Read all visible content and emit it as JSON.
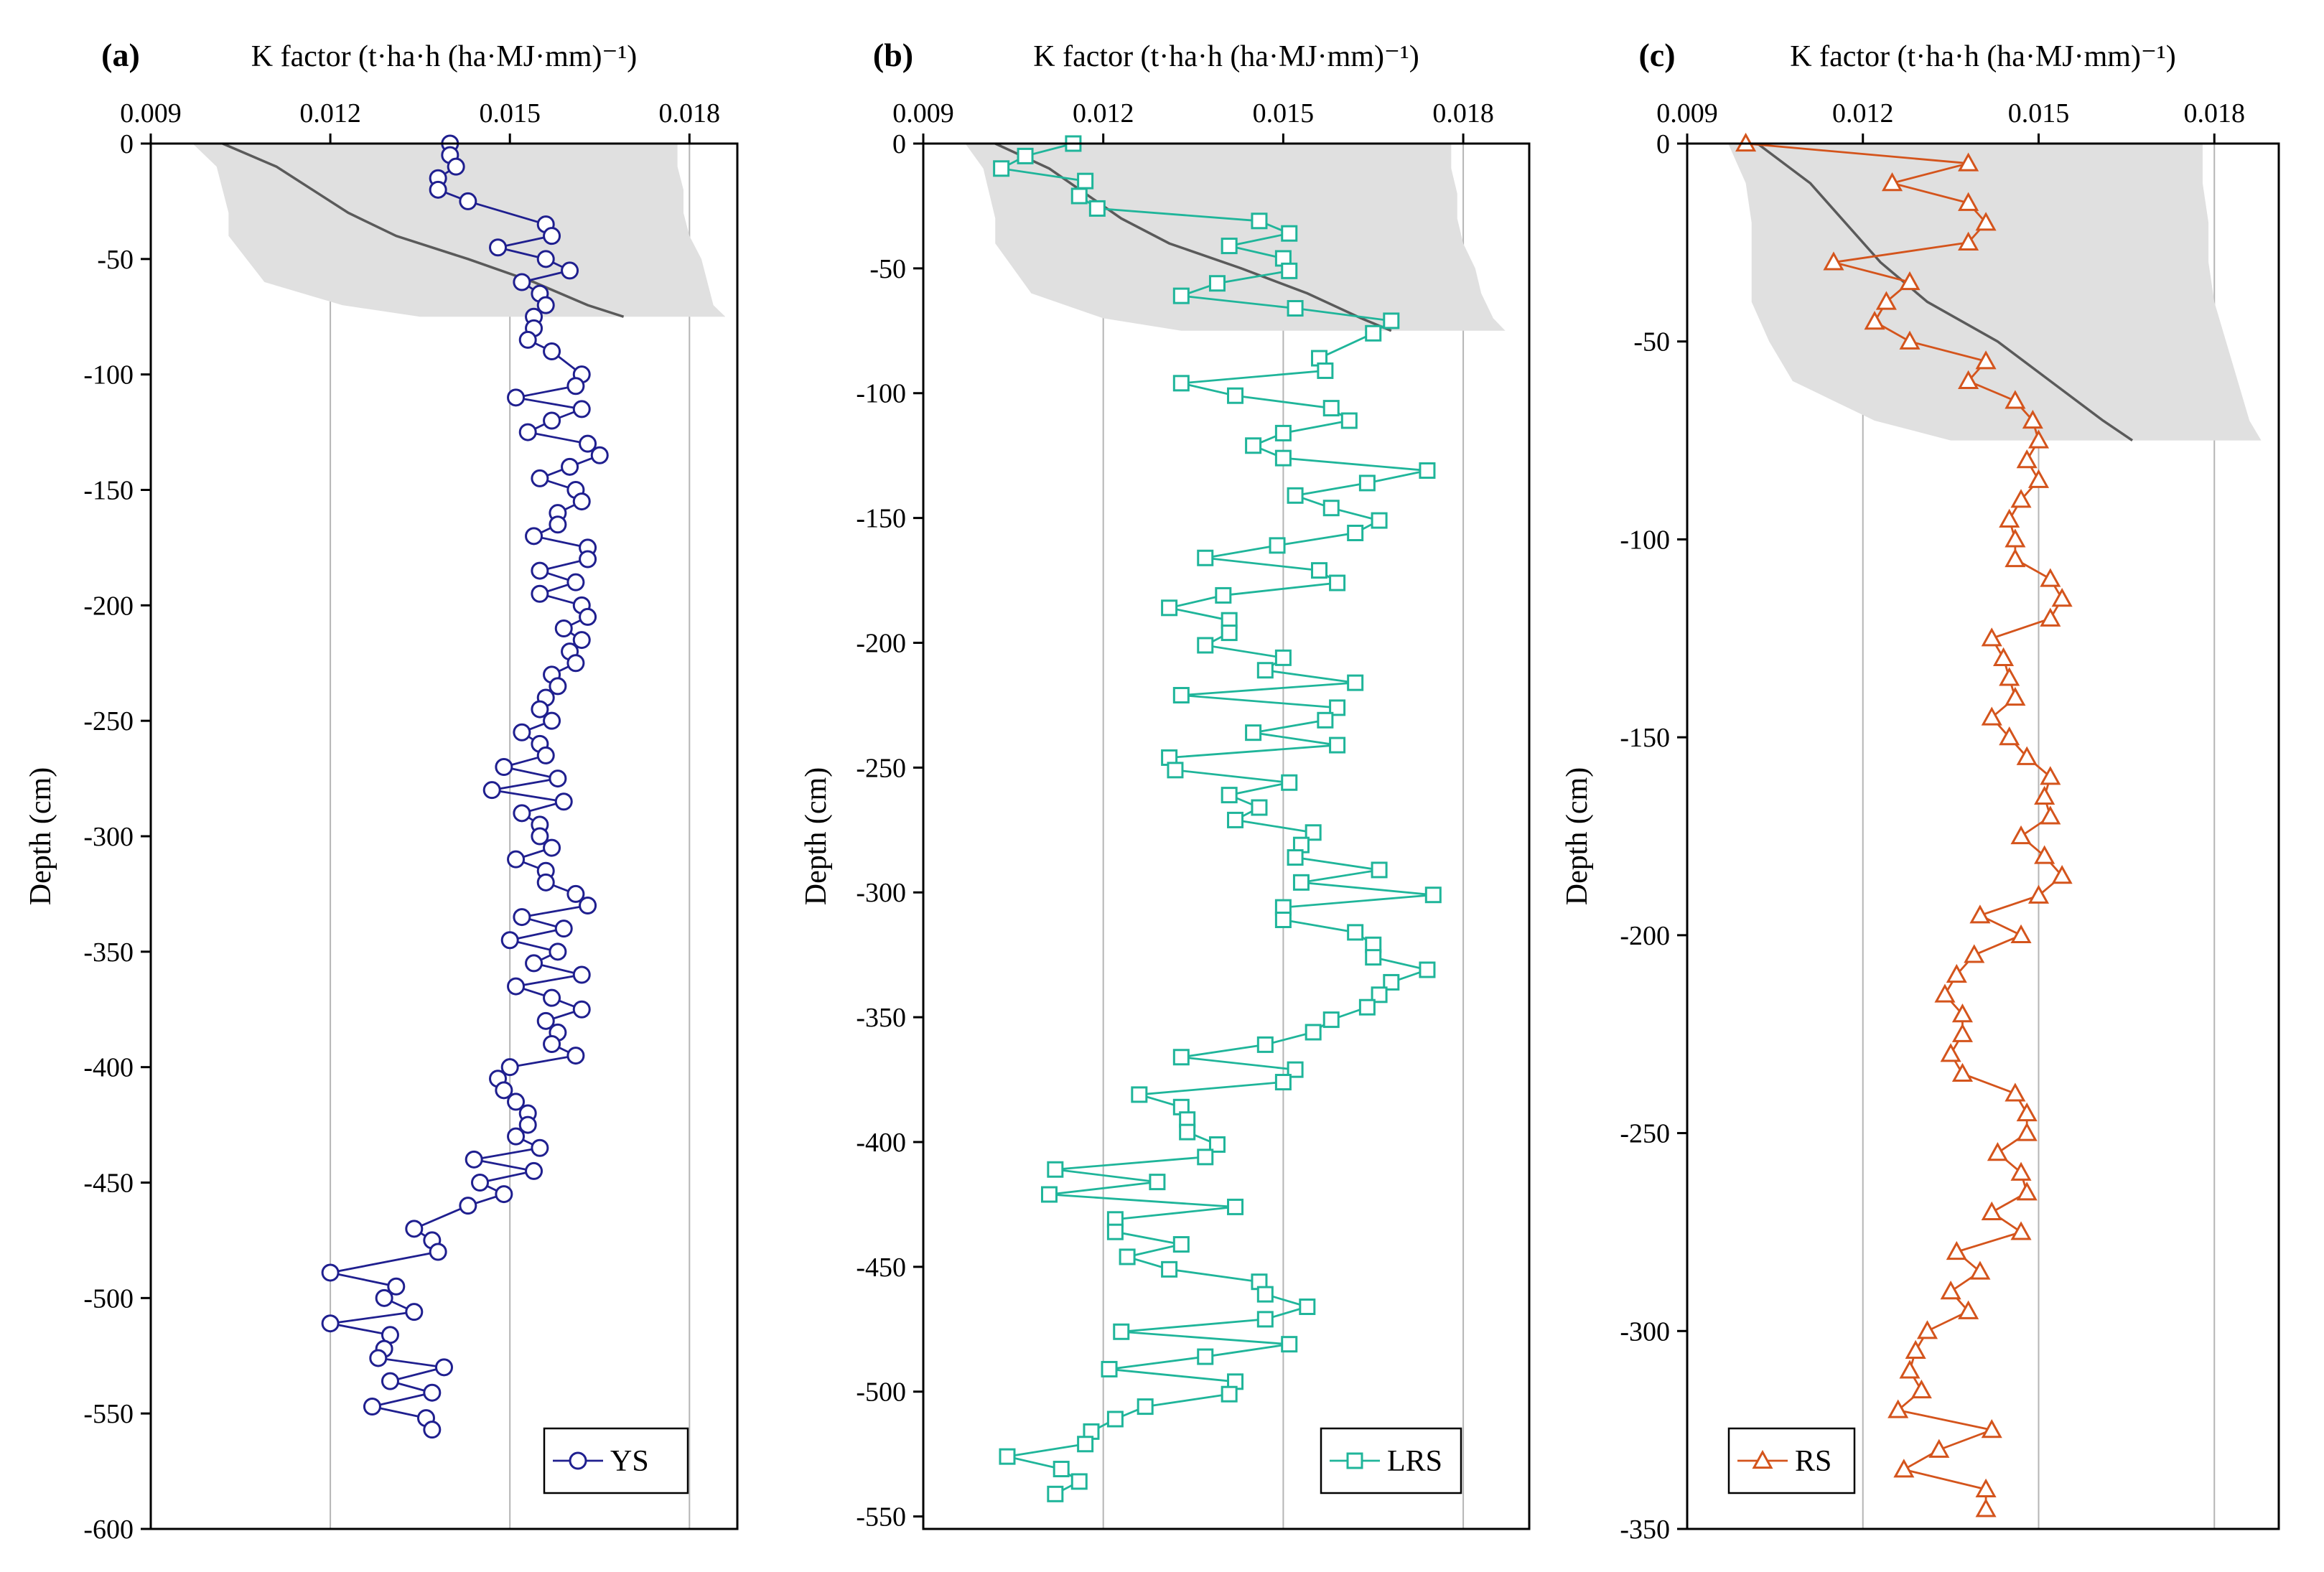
{
  "chart_data": [
    {
      "type": "line",
      "panel_label": "(a)",
      "xlabel": "K factor (t·ha·h (ha·MJ·mm)⁻¹)",
      "ylabel": "Depth (cm)",
      "xlim": [
        0.009,
        0.0188
      ],
      "ylim": [
        -600,
        0
      ],
      "xticks": [
        0.009,
        0.012,
        0.015,
        0.018
      ],
      "xtick_labels": [
        "0.009",
        "0.012",
        "0.015",
        "0.018"
      ],
      "yticks": [
        0,
        -50,
        -100,
        -150,
        -200,
        -250,
        -300,
        -350,
        -400,
        -450,
        -500,
        -550,
        -600
      ],
      "ytick_labels": [
        "0",
        "-50",
        "-100",
        "-150",
        "-200",
        "-250",
        "-300",
        "-350",
        "-400",
        "-450",
        "-500",
        "-550",
        "-600"
      ],
      "grid": "vertical at x ticks",
      "legend_position": "bottom-right",
      "series": [
        {
          "name": "YS",
          "marker": "circle",
          "color": "#1f1f8f",
          "x": [
            0.014,
            0.014,
            0.0141,
            0.0138,
            0.0138,
            0.0143,
            0.0156,
            0.0157,
            0.0148,
            0.0156,
            0.016,
            0.0152,
            0.0155,
            0.0156,
            0.0154,
            0.0154,
            0.0153,
            0.0157,
            0.0162,
            0.0161,
            0.0151,
            0.0162,
            0.0157,
            0.0153,
            0.0163,
            0.0165,
            0.016,
            0.0155,
            0.0161,
            0.0162,
            0.0158,
            0.0158,
            0.0154,
            0.0163,
            0.0163,
            0.0155,
            0.0161,
            0.0155,
            0.0162,
            0.0163,
            0.0159,
            0.0162,
            0.016,
            0.0161,
            0.0157,
            0.0158,
            0.0156,
            0.0155,
            0.0157,
            0.0152,
            0.0155,
            0.0156,
            0.0149,
            0.0158,
            0.0147,
            0.0159,
            0.0152,
            0.0155,
            0.0155,
            0.0157,
            0.0151,
            0.0156,
            0.0156,
            0.0161,
            0.0163,
            0.0152,
            0.0159,
            0.015,
            0.0158,
            0.0154,
            0.0162,
            0.0151,
            0.0157,
            0.0162,
            0.0156,
            0.0158,
            0.0157,
            0.0161,
            0.015,
            0.0148,
            0.0149,
            0.0151,
            0.0153,
            0.0153,
            0.0151,
            0.0155,
            0.0144,
            0.0154,
            0.0145,
            0.0149,
            0.0143,
            0.0134,
            0.0137,
            0.0138,
            0.012,
            0.0131,
            0.0129,
            0.0134,
            0.012,
            0.013,
            0.0129,
            0.0128,
            0.0139,
            0.013,
            0.0137,
            0.0127,
            0.0136,
            0.0137
          ],
          "y": [
            0,
            -5,
            -10,
            -15,
            -20,
            -25,
            -35,
            -40,
            -45,
            -50,
            -55,
            -60,
            -65,
            -70,
            -75,
            -80,
            -85,
            -90,
            -100,
            -105,
            -110,
            -115,
            -120,
            -125,
            -130,
            -135,
            -140,
            -145,
            -150,
            -155,
            -160,
            -165,
            -170,
            -175,
            -180,
            -185,
            -190,
            -195,
            -200,
            -205,
            -210,
            -215,
            -220,
            -225,
            -230,
            -235,
            -240,
            -245,
            -250,
            -255,
            -260,
            -265,
            -270,
            -275,
            -280,
            -285,
            -290,
            -295,
            -300,
            -305,
            -310,
            -315,
            -320,
            -325,
            -330,
            -335,
            -340,
            -345,
            -350,
            -355,
            -360,
            -365,
            -370,
            -375,
            -380,
            -385,
            -390,
            -395,
            -400,
            -405,
            -410,
            -415,
            -420,
            -425,
            -430,
            -435,
            -440,
            -445,
            -450,
            -455,
            -460,
            -470,
            -475,
            -480,
            -489,
            -495,
            -500,
            -506,
            -511,
            -516,
            -522,
            -526,
            -530,
            -536,
            -541,
            -547,
            -552,
            -557
          ]
        }
      ],
      "shaded_band": {
        "y": [
          0,
          -10,
          -20,
          -30,
          -40,
          -50,
          -60,
          -70,
          -75
        ],
        "x_lower": [
          0.0097,
          0.0101,
          0.0102,
          0.0103,
          0.0103,
          0.0106,
          0.0109,
          0.0122,
          0.0135
        ],
        "x_upper": [
          0.0178,
          0.0178,
          0.0179,
          0.0179,
          0.018,
          0.0182,
          0.0183,
          0.0184,
          0.0186
        ]
      },
      "mean_line": {
        "y": [
          0,
          -10,
          -20,
          -30,
          -40,
          -50,
          -60,
          -70,
          -75
        ],
        "x": [
          0.0102,
          0.0111,
          0.0117,
          0.0123,
          0.0131,
          0.0143,
          0.0154,
          0.0163,
          0.0169
        ]
      }
    },
    {
      "type": "line",
      "panel_label": "(b)",
      "xlabel": "K factor (t·ha·h (ha·MJ·mm)⁻¹)",
      "ylabel": "Depth (cm)",
      "xlim": [
        0.009,
        0.0191
      ],
      "ylim": [
        -555,
        0
      ],
      "xticks": [
        0.009,
        0.012,
        0.015,
        0.018
      ],
      "xtick_labels": [
        "0.009",
        "0.012",
        "0.015",
        "0.018"
      ],
      "yticks": [
        0,
        -50,
        -100,
        -150,
        -200,
        -250,
        -300,
        -350,
        -400,
        -450,
        -500,
        -550
      ],
      "ytick_labels": [
        "0",
        "-50",
        "-100",
        "-150",
        "-200",
        "-250",
        "-300",
        "-350",
        "-400",
        "-450",
        "-500",
        "-550"
      ],
      "grid": "vertical at x ticks",
      "legend_position": "bottom-right",
      "series": [
        {
          "name": "LRS",
          "marker": "square",
          "color": "#1fb59a",
          "x": [
            0.0115,
            0.0107,
            0.0103,
            0.0117,
            0.0116,
            0.0119,
            0.0146,
            0.0151,
            0.0141,
            0.015,
            0.0151,
            0.0139,
            0.0133,
            0.0152,
            0.0168,
            0.0165,
            0.0156,
            0.0157,
            0.0133,
            0.0142,
            0.0158,
            0.0161,
            0.015,
            0.0145,
            0.015,
            0.0174,
            0.0164,
            0.0152,
            0.0158,
            0.0166,
            0.0162,
            0.0149,
            0.0137,
            0.0156,
            0.0159,
            0.014,
            0.0131,
            0.0141,
            0.0141,
            0.0137,
            0.015,
            0.0147,
            0.0162,
            0.0133,
            0.0159,
            0.0157,
            0.0145,
            0.0159,
            0.0131,
            0.0132,
            0.0151,
            0.0141,
            0.0146,
            0.0142,
            0.0155,
            0.0153,
            0.0152,
            0.0166,
            0.0153,
            0.0175,
            0.015,
            0.015,
            0.0162,
            0.0165,
            0.0165,
            0.0174,
            0.0168,
            0.0166,
            0.0164,
            0.0158,
            0.0155,
            0.0147,
            0.0133,
            0.0152,
            0.015,
            0.0126,
            0.0133,
            0.0134,
            0.0134,
            0.0139,
            0.0137,
            0.0112,
            0.0129,
            0.0111,
            0.0142,
            0.0122,
            0.0122,
            0.0133,
            0.0124,
            0.0131,
            0.0146,
            0.0147,
            0.0154,
            0.0147,
            0.0123,
            0.0151,
            0.0137,
            0.0121,
            0.0142,
            0.0141,
            0.0127,
            0.0122,
            0.0118,
            0.0117,
            0.0104,
            0.0113,
            0.0116,
            0.0112
          ],
          "y": [
            0,
            -5,
            -10,
            -15,
            -21,
            -26,
            -31,
            -36,
            -41,
            -46,
            -51,
            -56,
            -61,
            -66,
            -71,
            -76,
            -86,
            -91,
            -96,
            -101,
            -106,
            -111,
            -116,
            -121,
            -126,
            -131,
            -136,
            -141,
            -146,
            -151,
            -156,
            -161,
            -166,
            -171,
            -176,
            -181,
            -186,
            -191,
            -196,
            -201,
            -206,
            -211,
            -216,
            -221,
            -226,
            -231,
            -236,
            -241,
            -246,
            -251,
            -256,
            -261,
            -266,
            -271,
            -276,
            -281,
            -286,
            -291,
            -296,
            -301,
            -306,
            -311,
            -316,
            -321,
            -326,
            -331,
            -336,
            -341,
            -346,
            -351,
            -356,
            -361,
            -366,
            -371,
            -376,
            -381,
            -386,
            -391,
            -396,
            -401,
            -406,
            -411,
            -416,
            -421,
            -426,
            -431,
            -436,
            -441,
            -446,
            -451,
            -456,
            -461,
            -466,
            -471,
            -476,
            -481,
            -486,
            -491,
            -496,
            -501,
            -506,
            -511,
            -516,
            -521,
            -526,
            -531,
            -536,
            -541
          ]
        }
      ],
      "shaded_band": {
        "y": [
          0,
          -10,
          -20,
          -30,
          -40,
          -50,
          -60,
          -70,
          -75
        ],
        "x_lower": [
          0.0097,
          0.01,
          0.0101,
          0.0102,
          0.0102,
          0.0105,
          0.0108,
          0.012,
          0.0133
        ],
        "x_upper": [
          0.0178,
          0.0178,
          0.0179,
          0.0179,
          0.018,
          0.0182,
          0.0183,
          0.0185,
          0.0187
        ]
      },
      "mean_line": {
        "y": [
          0,
          -10,
          -20,
          -30,
          -40,
          -50,
          -60,
          -70,
          -75
        ],
        "x": [
          0.0102,
          0.0111,
          0.0117,
          0.0123,
          0.0131,
          0.0143,
          0.0154,
          0.0163,
          0.0168
        ]
      }
    },
    {
      "type": "line",
      "panel_label": "(c)",
      "xlabel": "K factor (t·ha·h (ha·MJ·mm)⁻¹)",
      "ylabel": "Depth (cm)",
      "xlim": [
        0.009,
        0.0191
      ],
      "ylim": [
        -350,
        0
      ],
      "xticks": [
        0.009,
        0.012,
        0.015,
        0.018
      ],
      "xtick_labels": [
        "0.009",
        "0.012",
        "0.015",
        "0.018"
      ],
      "yticks": [
        0,
        -50,
        -100,
        -150,
        -200,
        -250,
        -300,
        -350
      ],
      "ytick_labels": [
        "0",
        "-50",
        "-100",
        "-150",
        "-200",
        "-250",
        "-300",
        "-350"
      ],
      "grid": "vertical at x ticks",
      "legend_position": "bottom-left",
      "series": [
        {
          "name": "RS",
          "marker": "triangle",
          "color": "#d4541c",
          "x": [
            0.01,
            0.0138,
            0.0125,
            0.0138,
            0.0141,
            0.0138,
            0.0115,
            0.0128,
            0.0124,
            0.0122,
            0.0128,
            0.0141,
            0.0138,
            0.0146,
            0.0149,
            0.015,
            0.0148,
            0.015,
            0.0147,
            0.0145,
            0.0146,
            0.0146,
            0.0152,
            0.0154,
            0.0152,
            0.0142,
            0.0144,
            0.0145,
            0.0146,
            0.0142,
            0.0145,
            0.0148,
            0.0152,
            0.0151,
            0.0152,
            0.0147,
            0.0151,
            0.0154,
            0.015,
            0.014,
            0.0147,
            0.0139,
            0.0136,
            0.0134,
            0.0137,
            0.0137,
            0.0135,
            0.0137,
            0.0146,
            0.0148,
            0.0148,
            0.0143,
            0.0147,
            0.0148,
            0.0142,
            0.0147,
            0.0136,
            0.014,
            0.0135,
            0.0138,
            0.0131,
            0.0129,
            0.0128,
            0.013,
            0.0126,
            0.0142,
            0.0133,
            0.0127,
            0.0141,
            0.0141
          ],
          "y": [
            0,
            -5,
            -10,
            -15,
            -20,
            -25,
            -30,
            -35,
            -40,
            -45,
            -50,
            -55,
            -60,
            -65,
            -70,
            -75,
            -80,
            -85,
            -90,
            -95,
            -100,
            -105,
            -110,
            -115,
            -120,
            -125,
            -130,
            -135,
            -140,
            -145,
            -150,
            -155,
            -160,
            -165,
            -170,
            -175,
            -180,
            -185,
            -190,
            -195,
            -200,
            -205,
            -210,
            -215,
            -220,
            -225,
            -230,
            -235,
            -240,
            -245,
            -250,
            -255,
            -260,
            -265,
            -270,
            -275,
            -280,
            -285,
            -290,
            -295,
            -300,
            -305,
            -310,
            -315,
            -320,
            -325,
            -330,
            -335,
            -340,
            -345
          ]
        }
      ],
      "shaded_band": {
        "y": [
          0,
          -10,
          -20,
          -30,
          -40,
          -50,
          -60,
          -70,
          -75
        ],
        "x_lower": [
          0.0097,
          0.01,
          0.0101,
          0.0101,
          0.0101,
          0.0104,
          0.0108,
          0.0122,
          0.0135
        ],
        "x_upper": [
          0.0178,
          0.0178,
          0.0179,
          0.0179,
          0.018,
          0.0182,
          0.0184,
          0.0186,
          0.0188
        ]
      },
      "mean_line": {
        "y": [
          0,
          -10,
          -20,
          -30,
          -40,
          -50,
          -60,
          -70,
          -75
        ],
        "x": [
          0.0102,
          0.0111,
          0.0117,
          0.0123,
          0.0131,
          0.0143,
          0.0152,
          0.0161,
          0.0166
        ]
      }
    }
  ],
  "colors": {
    "band": "#e0e0e0",
    "mean_line": "#5a5a5a",
    "grid": "#b5b5b5",
    "axis": "#000000"
  }
}
